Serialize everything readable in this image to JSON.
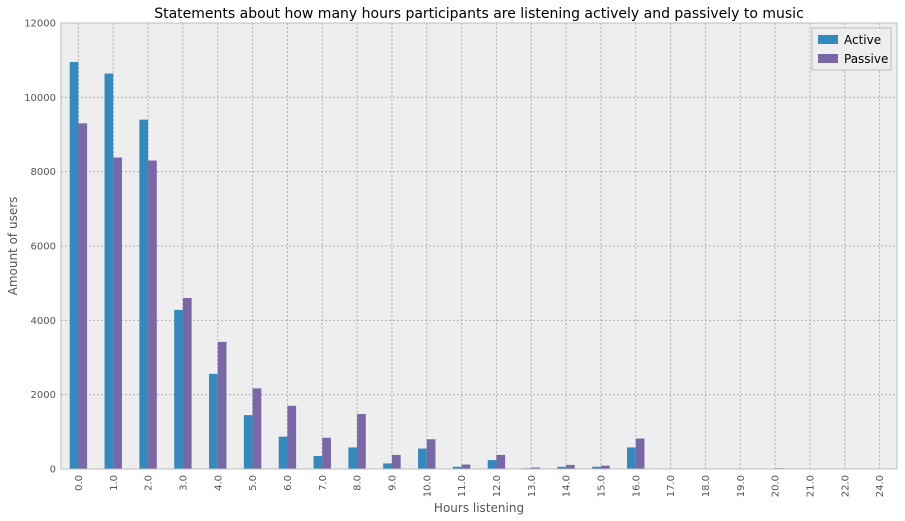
{
  "chart_data": {
    "type": "bar",
    "title": "Statements about how many hours participants are listening actively and passively to music",
    "xlabel": "Hours listening",
    "ylabel": "Amount of users",
    "categories": [
      "0.0",
      "1.0",
      "2.0",
      "3.0",
      "4.0",
      "5.0",
      "6.0",
      "7.0",
      "8.0",
      "9.0",
      "10.0",
      "11.0",
      "12.0",
      "13.0",
      "14.0",
      "15.0",
      "16.0",
      "17.0",
      "18.0",
      "19.0",
      "20.0",
      "21.0",
      "22.0",
      "24.0"
    ],
    "series": [
      {
        "name": "Active",
        "color": "#348abd",
        "values": [
          10950,
          10640,
          9400,
          4280,
          2560,
          1450,
          870,
          350,
          580,
          150,
          550,
          60,
          240,
          20,
          60,
          60,
          580,
          0,
          0,
          0,
          10,
          0,
          0,
          0
        ]
      },
      {
        "name": "Passive",
        "color": "#7a68a6",
        "values": [
          9300,
          8380,
          8300,
          4600,
          3420,
          2170,
          1700,
          840,
          1480,
          380,
          800,
          120,
          380,
          40,
          110,
          90,
          820,
          0,
          0,
          0,
          20,
          0,
          0,
          0
        ]
      }
    ],
    "ylim": [
      0,
      12000
    ],
    "yticks": [
      "0",
      "2000",
      "4000",
      "6000",
      "8000",
      "10000",
      "12000"
    ],
    "grid": true,
    "legend_position": "top-right",
    "background": "#eeeeee",
    "grid_color": "#b0b0b0"
  }
}
